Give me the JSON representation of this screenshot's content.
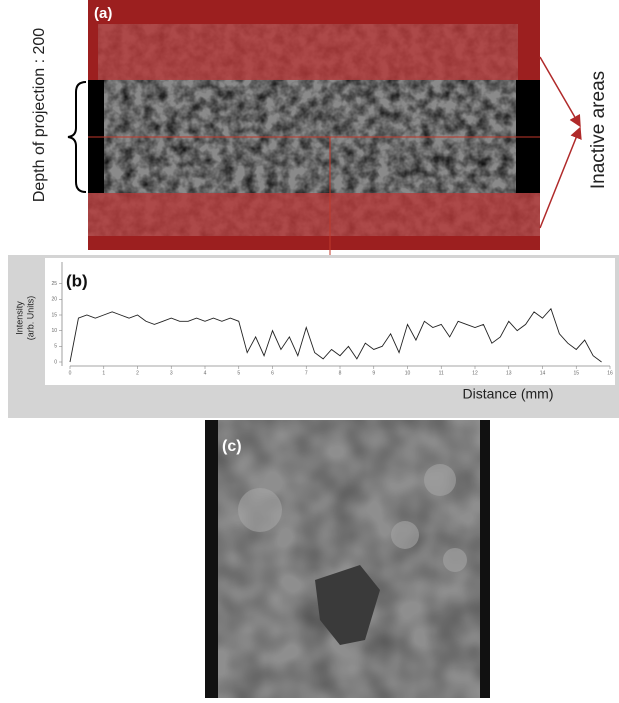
{
  "panel_a": {
    "label": "(a)",
    "depth_label": "Depth of projection : 200",
    "inactive_label": "Inactive areas"
  },
  "panel_c": {
    "label": "(c)"
  },
  "chart_data": {
    "type": "line",
    "panel_label": "(b)",
    "y_label": [
      "Intensity",
      "(arb. Units)"
    ],
    "x_label": "Distance (mm)",
    "xlim": [
      0,
      16
    ],
    "xticks": [
      0,
      1,
      2,
      3,
      4,
      5,
      6,
      7,
      8,
      9,
      10,
      11,
      12,
      13,
      14,
      15,
      16
    ],
    "ylim": [
      0,
      30
    ],
    "yticks": [
      0,
      5,
      10,
      15,
      20,
      25
    ],
    "series": [
      {
        "color": "#222222",
        "x": [
          0,
          0.25,
          0.5,
          0.75,
          1,
          1.25,
          1.5,
          1.75,
          2,
          2.25,
          2.5,
          2.75,
          3,
          3.25,
          3.5,
          3.75,
          4,
          4.25,
          4.5,
          4.75,
          5,
          5.25,
          5.5,
          5.75,
          6,
          6.25,
          6.5,
          6.75,
          7,
          7.25,
          7.5,
          7.75,
          8,
          8.25,
          8.5,
          8.75,
          9,
          9.25,
          9.5,
          9.75,
          10,
          10.25,
          10.5,
          10.75,
          11,
          11.25,
          11.5,
          11.75,
          12,
          12.25,
          12.5,
          12.75,
          13,
          13.25,
          13.5,
          13.75,
          14,
          14.25,
          14.5,
          14.75,
          15,
          15.25,
          15.5,
          15.75
        ],
        "values": [
          0,
          14,
          15,
          14,
          15,
          16,
          15,
          14,
          15,
          13,
          12,
          13,
          14,
          13,
          13,
          14,
          13,
          14,
          13,
          14,
          13,
          3,
          8,
          2,
          10,
          4,
          8,
          2,
          11,
          3,
          1,
          4,
          2,
          5,
          1,
          6,
          4,
          5,
          9,
          3,
          12,
          7,
          13,
          11,
          12,
          8,
          13,
          12,
          11,
          12,
          6,
          8,
          13,
          10,
          12,
          16,
          14,
          17,
          9,
          6,
          4,
          7,
          2,
          0
        ]
      }
    ]
  }
}
